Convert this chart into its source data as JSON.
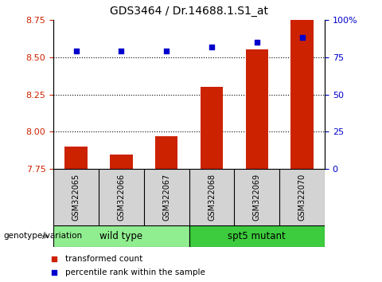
{
  "title": "GDS3464 / Dr.14688.1.S1_at",
  "samples": [
    "GSM322065",
    "GSM322066",
    "GSM322067",
    "GSM322068",
    "GSM322069",
    "GSM322070"
  ],
  "red_values": [
    7.9,
    7.85,
    7.97,
    8.3,
    8.55,
    8.75
  ],
  "blue_values": [
    79,
    79,
    79,
    82,
    85,
    88
  ],
  "ylim_left": [
    7.75,
    8.75
  ],
  "ylim_right": [
    0,
    100
  ],
  "yticks_left": [
    7.75,
    8.0,
    8.25,
    8.5,
    8.75
  ],
  "yticks_right": [
    0,
    25,
    50,
    75,
    100
  ],
  "ytick_labels_right": [
    "0",
    "25",
    "50",
    "75",
    "100%"
  ],
  "groups": [
    {
      "label": "wild type",
      "indices": [
        0,
        1,
        2
      ],
      "color": "#90ee90"
    },
    {
      "label": "spt5 mutant",
      "indices": [
        3,
        4,
        5
      ],
      "color": "#3dcc3d"
    }
  ],
  "genotype_label": "genotype/variation",
  "legend_red": "transformed count",
  "legend_blue": "percentile rank within the sample",
  "bar_color": "#cc2200",
  "dot_color": "#0000cc",
  "background_color": "#ffffff",
  "grid_color": "#000000",
  "title_fontsize": 10,
  "tick_fontsize": 8,
  "label_fontsize": 8
}
